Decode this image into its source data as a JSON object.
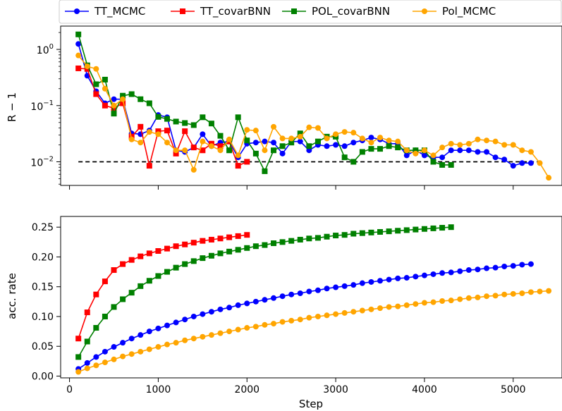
{
  "chart_data": [
    {
      "type": "line",
      "subplot": "top",
      "ylabel": "R − 1",
      "yscale": "log",
      "yticks": [
        {
          "value": 1,
          "base": "10",
          "exp": "0"
        },
        {
          "value": 0.1,
          "base": "10",
          "exp": "−1"
        },
        {
          "value": 0.01,
          "base": "10",
          "exp": "−2"
        }
      ],
      "ylim": [
        0.0038,
        2.6
      ],
      "xlim": [
        -100,
        5550
      ],
      "xtick_values": [
        0,
        1000,
        2000,
        3000,
        4000,
        5000
      ],
      "reference_line": {
        "y": 0.01,
        "x_range": [
          100,
          5300
        ],
        "style": "dashed",
        "color": "#000000"
      },
      "legend": {
        "placement": "top",
        "position": "outside-top"
      },
      "series": [
        {
          "name": "TT_MCMC",
          "color": "#0000ff",
          "marker": "circle",
          "x": [
            100,
            200,
            300,
            400,
            500,
            600,
            700,
            800,
            900,
            1000,
            1100,
            1200,
            1300,
            1400,
            1500,
            1600,
            1700,
            1800,
            1900,
            2000,
            2100,
            2200,
            2300,
            2400,
            2500,
            2600,
            2700,
            2800,
            2900,
            3000,
            3100,
            3200,
            3300,
            3400,
            3500,
            3600,
            3700,
            3800,
            3900,
            4000,
            4100,
            4200,
            4300,
            4400,
            4500,
            4600,
            4700,
            4800,
            4900,
            5000,
            5100,
            5200
          ],
          "y": [
            1.25,
            0.34,
            0.18,
            0.11,
            0.13,
            0.13,
            0.032,
            0.031,
            0.036,
            0.068,
            0.062,
            0.016,
            0.015,
            0.018,
            0.031,
            0.019,
            0.022,
            0.023,
            0.012,
            0.021,
            0.022,
            0.023,
            0.022,
            0.014,
            0.023,
            0.023,
            0.016,
            0.02,
            0.019,
            0.02,
            0.019,
            0.022,
            0.024,
            0.027,
            0.025,
            0.021,
            0.021,
            0.013,
            0.016,
            0.013,
            0.012,
            0.012,
            0.016,
            0.016,
            0.016,
            0.015,
            0.015,
            0.012,
            0.011,
            0.0085,
            0.0095,
            0.0095
          ]
        },
        {
          "name": "TT_covarBNN",
          "color": "#ff0000",
          "marker": "square",
          "x": [
            100,
            200,
            300,
            400,
            500,
            600,
            700,
            800,
            900,
            1000,
            1100,
            1200,
            1300,
            1400,
            1500,
            1600,
            1700,
            1800,
            1900,
            2000
          ],
          "y": [
            0.46,
            0.45,
            0.16,
            0.1,
            0.09,
            0.11,
            0.028,
            0.042,
            0.0085,
            0.035,
            0.036,
            0.014,
            0.035,
            0.018,
            0.016,
            0.021,
            0.019,
            0.023,
            0.0085,
            0.01
          ]
        },
        {
          "name": "POL_covarBNN",
          "color": "#008000",
          "marker": "square",
          "x": [
            100,
            200,
            300,
            400,
            500,
            600,
            700,
            800,
            900,
            1000,
            1100,
            1200,
            1300,
            1400,
            1500,
            1600,
            1700,
            1800,
            1900,
            2000,
            2100,
            2200,
            2300,
            2400,
            2500,
            2600,
            2700,
            2800,
            2900,
            3000,
            3100,
            3200,
            3300,
            3400,
            3500,
            3600,
            3700,
            3800,
            3900,
            4000,
            4100,
            4200,
            4300
          ],
          "y": [
            1.85,
            0.52,
            0.24,
            0.29,
            0.072,
            0.15,
            0.16,
            0.13,
            0.11,
            0.063,
            0.058,
            0.052,
            0.049,
            0.045,
            0.062,
            0.048,
            0.029,
            0.016,
            0.062,
            0.024,
            0.014,
            0.0068,
            0.016,
            0.019,
            0.022,
            0.032,
            0.019,
            0.023,
            0.028,
            0.028,
            0.012,
            0.01,
            0.015,
            0.017,
            0.017,
            0.019,
            0.018,
            0.016,
            0.016,
            0.016,
            0.01,
            0.0088,
            0.0088
          ]
        },
        {
          "name": "Pol_MCMC",
          "color": "#ffa500",
          "marker": "circle",
          "x": [
            100,
            200,
            300,
            400,
            500,
            600,
            700,
            800,
            900,
            1000,
            1100,
            1200,
            1300,
            1400,
            1500,
            1600,
            1700,
            1800,
            1900,
            2000,
            2100,
            2200,
            2300,
            2400,
            2500,
            2600,
            2700,
            2800,
            2900,
            3000,
            3100,
            3200,
            3300,
            3400,
            3500,
            3600,
            3700,
            3800,
            3900,
            4000,
            4100,
            4200,
            4300,
            4400,
            4500,
            4600,
            4700,
            4800,
            4900,
            5000,
            5100,
            5200,
            5300,
            5400
          ],
          "y": [
            0.78,
            0.5,
            0.45,
            0.2,
            0.1,
            0.13,
            0.025,
            0.022,
            0.034,
            0.031,
            0.022,
            0.016,
            0.016,
            0.0072,
            0.023,
            0.019,
            0.016,
            0.025,
            0.013,
            0.037,
            0.036,
            0.016,
            0.042,
            0.026,
            0.026,
            0.028,
            0.041,
            0.04,
            0.026,
            0.031,
            0.034,
            0.033,
            0.026,
            0.022,
            0.027,
            0.024,
            0.023,
            0.016,
            0.014,
            0.016,
            0.013,
            0.018,
            0.021,
            0.02,
            0.021,
            0.025,
            0.024,
            0.023,
            0.02,
            0.02,
            0.016,
            0.015,
            0.0095,
            0.0052
          ]
        }
      ]
    },
    {
      "type": "line",
      "subplot": "bottom",
      "xlabel": "Step",
      "ylabel": "acc. rate",
      "xlim": [
        -100,
        5550
      ],
      "ylim": [
        -0.003,
        0.268
      ],
      "xticks": [
        "0",
        "1000",
        "2000",
        "3000",
        "4000",
        "5000"
      ],
      "xtick_values": [
        0,
        1000,
        2000,
        3000,
        4000,
        5000
      ],
      "yticks": [
        "0.00",
        "0.05",
        "0.10",
        "0.15",
        "0.20",
        "0.25"
      ],
      "ytick_values": [
        0,
        0.05,
        0.1,
        0.15,
        0.2,
        0.25
      ],
      "series": [
        {
          "name": "TT_MCMC",
          "color": "#0000ff",
          "marker": "circle",
          "x": [
            100,
            200,
            300,
            400,
            500,
            600,
            700,
            800,
            900,
            1000,
            1100,
            1200,
            1300,
            1400,
            1500,
            1600,
            1700,
            1800,
            1900,
            2000,
            2100,
            2200,
            2300,
            2400,
            2500,
            2600,
            2700,
            2800,
            2900,
            3000,
            3100,
            3200,
            3300,
            3400,
            3500,
            3600,
            3700,
            3800,
            3900,
            4000,
            4100,
            4200,
            4300,
            4400,
            4500,
            4600,
            4700,
            4800,
            4900,
            5000,
            5100,
            5200
          ],
          "y": [
            0.012,
            0.022,
            0.032,
            0.041,
            0.049,
            0.056,
            0.063,
            0.069,
            0.075,
            0.08,
            0.085,
            0.09,
            0.095,
            0.1,
            0.104,
            0.108,
            0.112,
            0.115,
            0.119,
            0.122,
            0.125,
            0.128,
            0.131,
            0.134,
            0.137,
            0.139,
            0.142,
            0.144,
            0.147,
            0.149,
            0.151,
            0.153,
            0.156,
            0.158,
            0.16,
            0.162,
            0.164,
            0.165,
            0.167,
            0.169,
            0.171,
            0.173,
            0.174,
            0.176,
            0.178,
            0.179,
            0.181,
            0.182,
            0.184,
            0.185,
            0.187,
            0.188
          ]
        },
        {
          "name": "TT_covarBNN",
          "color": "#ff0000",
          "marker": "square",
          "x": [
            100,
            200,
            300,
            400,
            500,
            600,
            700,
            800,
            900,
            1000,
            1100,
            1200,
            1300,
            1400,
            1500,
            1600,
            1700,
            1800,
            1900,
            2000
          ],
          "y": [
            0.063,
            0.107,
            0.137,
            0.159,
            0.178,
            0.188,
            0.195,
            0.201,
            0.206,
            0.21,
            0.214,
            0.218,
            0.221,
            0.224,
            0.227,
            0.229,
            0.231,
            0.233,
            0.235,
            0.237
          ]
        },
        {
          "name": "POL_covarBNN",
          "color": "#008000",
          "marker": "square",
          "x": [
            100,
            200,
            300,
            400,
            500,
            600,
            700,
            800,
            900,
            1000,
            1100,
            1200,
            1300,
            1400,
            1500,
            1600,
            1700,
            1800,
            1900,
            2000,
            2100,
            2200,
            2300,
            2400,
            2500,
            2600,
            2700,
            2800,
            2900,
            3000,
            3100,
            3200,
            3300,
            3400,
            3500,
            3600,
            3700,
            3800,
            3900,
            4000,
            4100,
            4200,
            4300
          ],
          "y": [
            0.032,
            0.058,
            0.081,
            0.1,
            0.116,
            0.129,
            0.14,
            0.151,
            0.16,
            0.168,
            0.175,
            0.182,
            0.188,
            0.193,
            0.198,
            0.202,
            0.206,
            0.209,
            0.212,
            0.215,
            0.218,
            0.22,
            0.223,
            0.225,
            0.227,
            0.229,
            0.231,
            0.232,
            0.234,
            0.236,
            0.237,
            0.239,
            0.24,
            0.241,
            0.242,
            0.243,
            0.244,
            0.245,
            0.246,
            0.247,
            0.248,
            0.249,
            0.25
          ]
        },
        {
          "name": "Pol_MCMC",
          "color": "#ffa500",
          "marker": "circle",
          "x": [
            100,
            200,
            300,
            400,
            500,
            600,
            700,
            800,
            900,
            1000,
            1100,
            1200,
            1300,
            1400,
            1500,
            1600,
            1700,
            1800,
            1900,
            2000,
            2100,
            2200,
            2300,
            2400,
            2500,
            2600,
            2700,
            2800,
            2900,
            3000,
            3100,
            3200,
            3300,
            3400,
            3500,
            3600,
            3700,
            3800,
            3900,
            4000,
            4100,
            4200,
            4300,
            4400,
            4500,
            4600,
            4700,
            4800,
            4900,
            5000,
            5100,
            5200,
            5300,
            5400
          ],
          "y": [
            0.007,
            0.013,
            0.018,
            0.023,
            0.028,
            0.033,
            0.037,
            0.041,
            0.045,
            0.049,
            0.053,
            0.056,
            0.06,
            0.063,
            0.066,
            0.069,
            0.072,
            0.075,
            0.078,
            0.081,
            0.083,
            0.086,
            0.088,
            0.091,
            0.093,
            0.095,
            0.098,
            0.1,
            0.102,
            0.104,
            0.106,
            0.108,
            0.11,
            0.112,
            0.114,
            0.116,
            0.117,
            0.119,
            0.121,
            0.123,
            0.124,
            0.126,
            0.127,
            0.129,
            0.131,
            0.132,
            0.134,
            0.135,
            0.137,
            0.138,
            0.139,
            0.141,
            0.142,
            0.143
          ]
        }
      ]
    }
  ]
}
